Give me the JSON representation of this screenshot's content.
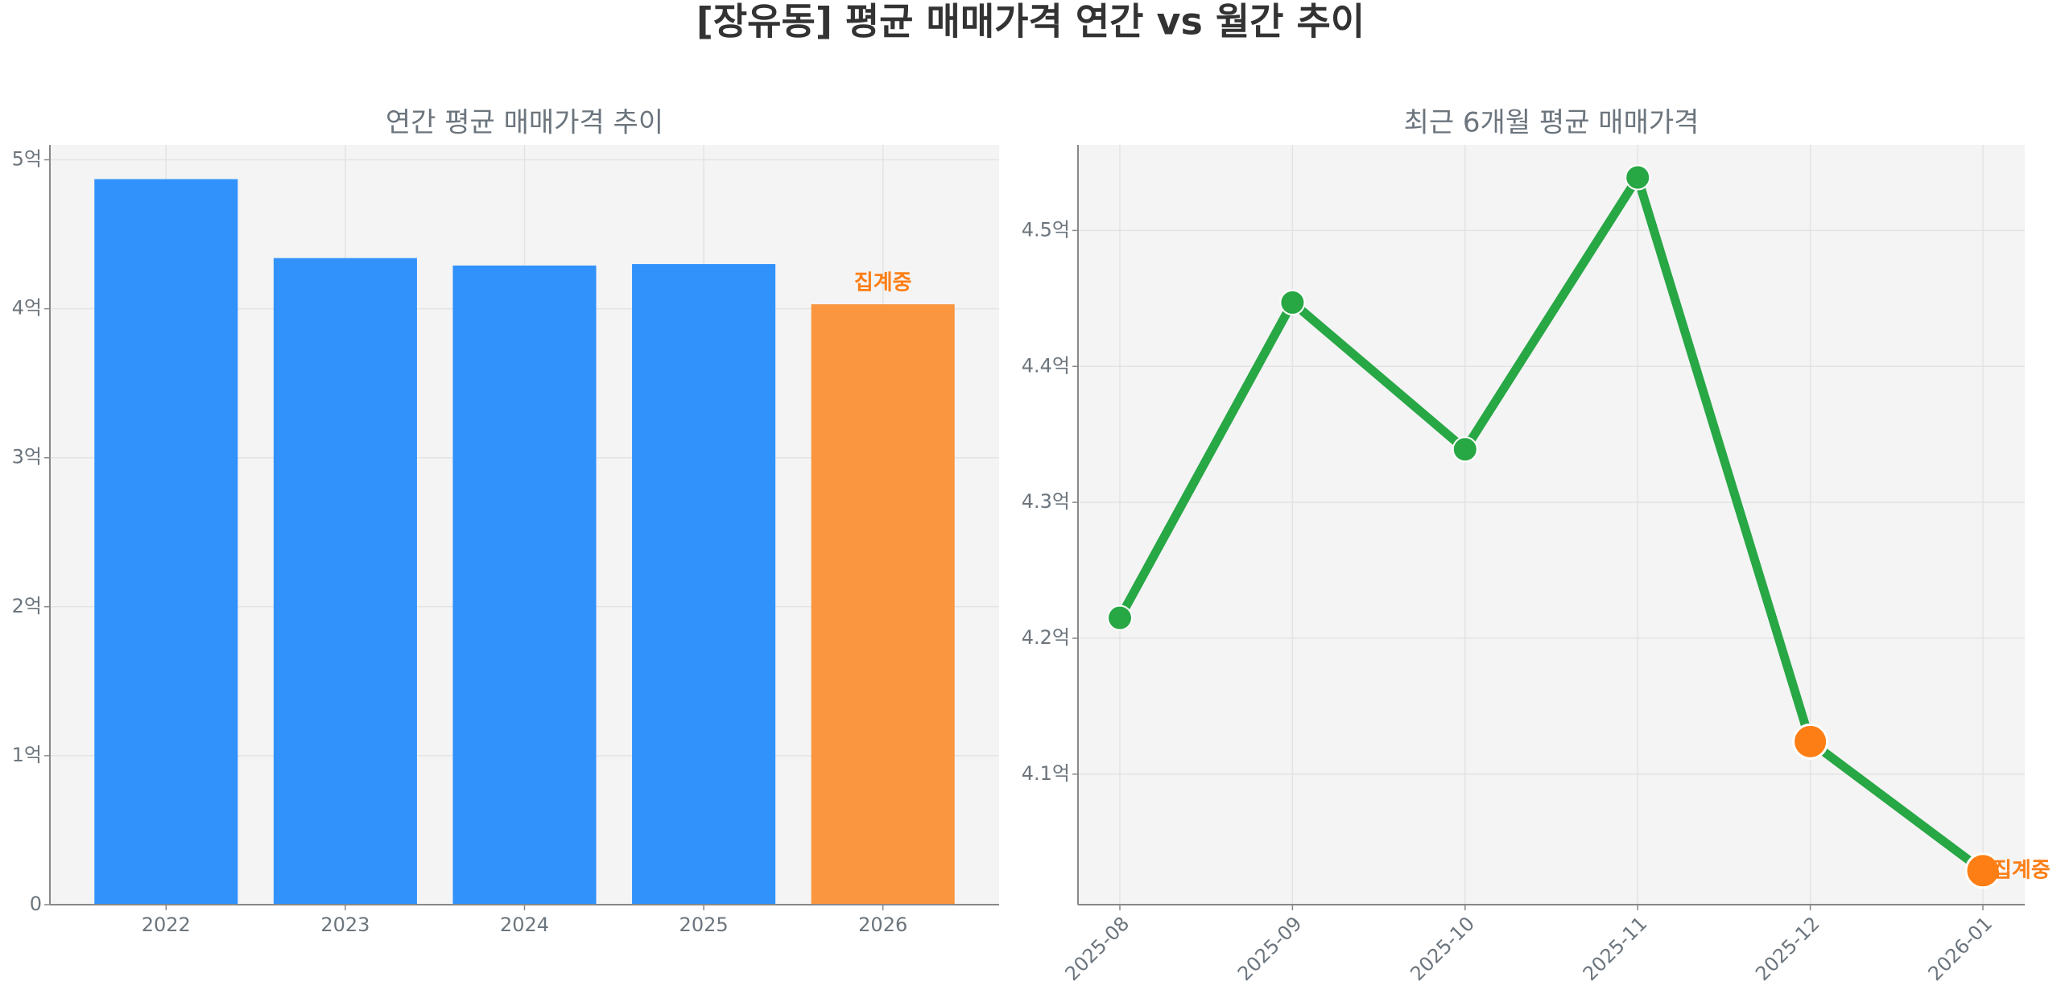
{
  "title": "[장유동] 평균 매매가격 연간 vs 월간 추이",
  "chart_data": [
    {
      "type": "bar",
      "title": "연간 평균 매매가격 추이",
      "categories": [
        "2022",
        "2023",
        "2024",
        "2025",
        "2026"
      ],
      "values": [
        4.87,
        4.34,
        4.29,
        4.3,
        4.03
      ],
      "colors": [
        "#3192fc",
        "#3192fc",
        "#3192fc",
        "#3192fc",
        "#f9963f"
      ],
      "annotation": "집계중",
      "annotation_color": "#fd7e14",
      "ylim": [
        0,
        5.1
      ],
      "yticks": [
        0,
        {
          "value": 1,
          "label": "1억"
        },
        {
          "value": 2,
          "label": "2억"
        },
        {
          "value": 3,
          "label": "3억"
        },
        {
          "value": 4,
          "label": "4억"
        },
        {
          "value": 5,
          "label": "5억"
        }
      ],
      "grid": true
    },
    {
      "type": "line",
      "title": "최근 6개월 평균 매매가격",
      "categories": [
        "2025-08",
        "2025-09",
        "2025-10",
        "2025-11",
        "2025-12",
        "2026-01"
      ],
      "series": [
        {
          "color": "#28a745",
          "values": [
            4.215,
            4.447,
            4.339,
            4.539,
            4.124,
            4.029
          ],
          "marker_colors": [
            "#28a745",
            "#28a745",
            "#28a745",
            "#28a745",
            "#fd7e14",
            "#fd7e14"
          ]
        }
      ],
      "annotation": "집계중",
      "annotation_color": "#fd7e14",
      "ylim": [
        4.004,
        4.563
      ],
      "yticks": [
        {
          "value": 4.1,
          "label": "4.1억"
        },
        {
          "value": 4.2,
          "label": "4.2억"
        },
        {
          "value": 4.3,
          "label": "4.3억"
        },
        {
          "value": 4.4,
          "label": "4.4억"
        },
        {
          "value": 4.5,
          "label": "4.5억"
        }
      ],
      "grid": true
    }
  ]
}
